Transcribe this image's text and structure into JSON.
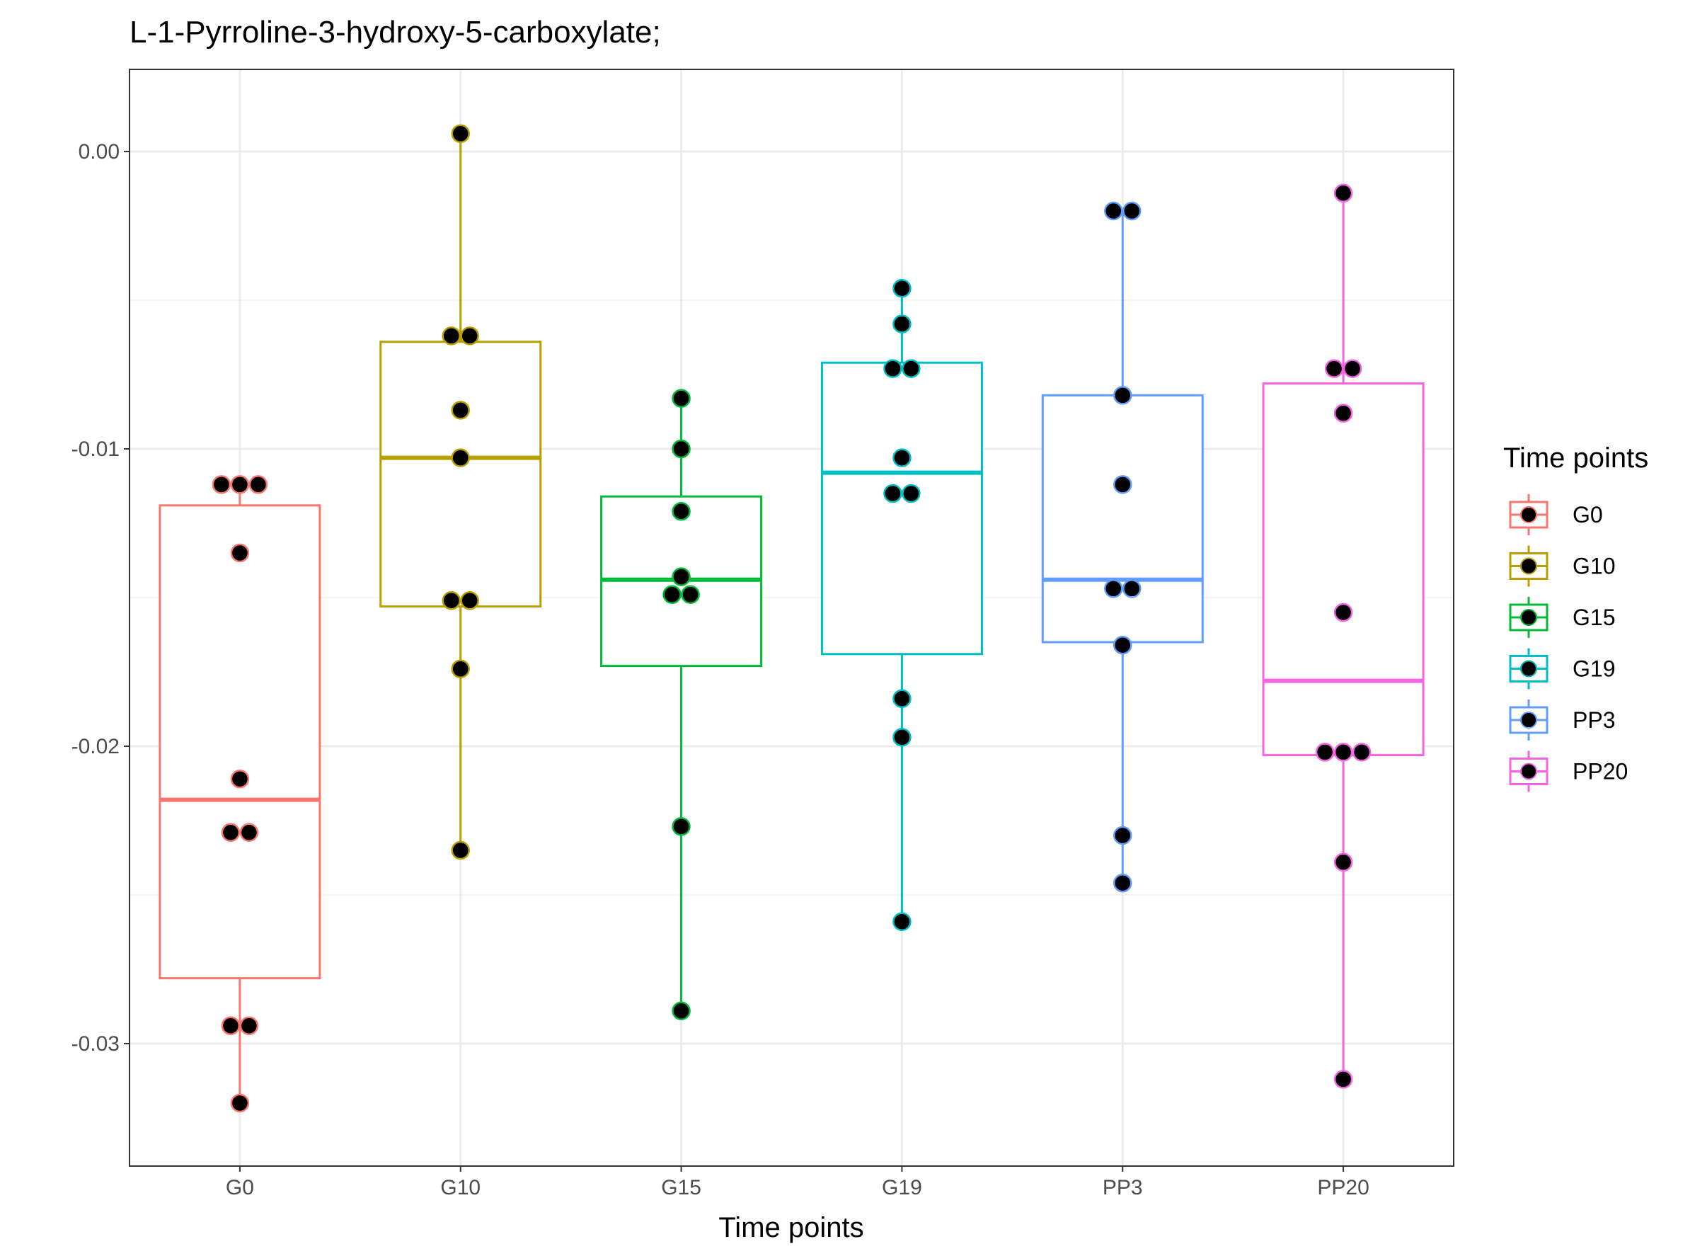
{
  "chart_data": {
    "type": "box",
    "title": "L-1-Pyrroline-3-hydroxy-5-carboxylate;",
    "xlabel": "Time points",
    "ylabel": "",
    "categories": [
      "G0",
      "G10",
      "G15",
      "G19",
      "PP3",
      "PP20"
    ],
    "ylim": [
      -0.0341,
      0.0028
    ],
    "yticks": [
      0.0,
      -0.01,
      -0.02,
      -0.03
    ],
    "ytick_labels": [
      "0.00",
      "-0.01",
      "-0.02",
      "-0.03"
    ],
    "grid": true,
    "legend": {
      "title": "Time points",
      "position": "right",
      "entries": [
        "G0",
        "G10",
        "G15",
        "G19",
        "PP3",
        "PP20"
      ]
    },
    "series": [
      {
        "name": "G0",
        "color": "#F8766D",
        "box": {
          "q1": -0.0278,
          "median": -0.0218,
          "q3": -0.0119,
          "whisker_low": -0.032,
          "whisker_high": -0.0112
        },
        "points": [
          -0.0112,
          -0.0112,
          -0.0112,
          -0.0135,
          -0.0211,
          -0.0229,
          -0.0229,
          -0.0294,
          -0.0294,
          -0.032
        ]
      },
      {
        "name": "G10",
        "color": "#B79F00",
        "box": {
          "q1": -0.0153,
          "median": -0.0103,
          "q3": -0.0064,
          "whisker_low": -0.0235,
          "whisker_high": 0.0006
        },
        "points": [
          0.0006,
          -0.0062,
          -0.0062,
          -0.0087,
          -0.0103,
          -0.0151,
          -0.0151,
          -0.0174,
          -0.0235
        ]
      },
      {
        "name": "G15",
        "color": "#00BA38",
        "box": {
          "q1": -0.0173,
          "median": -0.0144,
          "q3": -0.0116,
          "whisker_low": -0.0289,
          "whisker_high": -0.0083
        },
        "points": [
          -0.0083,
          -0.01,
          -0.0121,
          -0.0143,
          -0.0149,
          -0.0149,
          -0.0227,
          -0.0289
        ]
      },
      {
        "name": "G19",
        "color": "#00BFC4",
        "box": {
          "q1": -0.0169,
          "median": -0.0108,
          "q3": -0.0071,
          "whisker_low": -0.0259,
          "whisker_high": -0.0046
        },
        "points": [
          -0.0046,
          -0.0058,
          -0.0073,
          -0.0073,
          -0.0103,
          -0.0115,
          -0.0115,
          -0.0184,
          -0.0197,
          -0.0259
        ]
      },
      {
        "name": "PP3",
        "color": "#619CFF",
        "box": {
          "q1": -0.0165,
          "median": -0.0144,
          "q3": -0.0082,
          "whisker_low": -0.0246,
          "whisker_high": -0.002
        },
        "points": [
          -0.002,
          -0.002,
          -0.0082,
          -0.0112,
          -0.0147,
          -0.0147,
          -0.0166,
          -0.023,
          -0.0246
        ]
      },
      {
        "name": "PP20",
        "color": "#F564E3",
        "box": {
          "q1": -0.0203,
          "median": -0.0178,
          "q3": -0.0078,
          "whisker_low": -0.0312,
          "whisker_high": -0.0014
        },
        "points": [
          -0.0014,
          -0.0073,
          -0.0073,
          -0.0088,
          -0.0155,
          -0.0202,
          -0.0202,
          -0.0202,
          -0.0239,
          -0.0312
        ]
      }
    ]
  }
}
